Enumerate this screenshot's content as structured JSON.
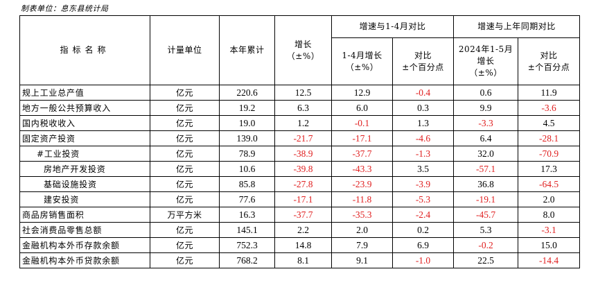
{
  "source": "制表单位：息东县统计局",
  "header": {
    "indicator": "指标名称",
    "unit": "计量单位",
    "ytd": "本年累计",
    "growth_l1": "增长",
    "growth_l2": "（±%）",
    "group1": "增速与1-4月对比",
    "group2": "增速与上年同期对比",
    "g1_growth_l1": "1-4月增长",
    "g1_growth_l2": "（±%）",
    "g1_compare_l1": "对比",
    "g1_compare_l2": "±个百分点",
    "g2_growth_l1": "2024年1-5月",
    "g2_growth_l2": "增长",
    "g2_growth_l3": "（±%）",
    "g2_compare_l1": "对比",
    "g2_compare_l2": "±个百分点"
  },
  "rows": [
    {
      "name": "规上工业总产值",
      "indent": 0,
      "unit": "亿元",
      "ytd": "220.6",
      "growth": "12.5",
      "g1_growth": "12.9",
      "g1_compare": "-0.4",
      "g2_growth": "0.6",
      "g2_compare": "11.9"
    },
    {
      "name": "地方一般公共预算收入",
      "indent": 0,
      "unit": "亿元",
      "ytd": "19.2",
      "growth": "6.3",
      "g1_growth": "6.0",
      "g1_compare": "0.3",
      "g2_growth": "9.9",
      "g2_compare": "-3.6"
    },
    {
      "name": "国内税收收入",
      "indent": 0,
      "unit": "亿元",
      "ytd": "19.0",
      "growth": "1.2",
      "g1_growth": "-0.1",
      "g1_compare": "1.3",
      "g2_growth": "-3.3",
      "g2_compare": "4.5"
    },
    {
      "name": "固定资产投资",
      "indent": 0,
      "unit": "亿元",
      "ytd": "139.0",
      "growth": "-21.7",
      "g1_growth": "-17.1",
      "g1_compare": "-4.6",
      "g2_growth": "6.4",
      "g2_compare": "-28.1"
    },
    {
      "name": "#工业投资",
      "indent": 1,
      "unit": "亿元",
      "ytd": "78.9",
      "growth": "-38.9",
      "g1_growth": "-37.7",
      "g1_compare": "-1.3",
      "g2_growth": "32.0",
      "g2_compare": "-70.9"
    },
    {
      "name": "房地产开发投资",
      "indent": 2,
      "unit": "亿元",
      "ytd": "10.6",
      "growth": "-39.8",
      "g1_growth": "-43.3",
      "g1_compare": "3.5",
      "g2_growth": "-57.1",
      "g2_compare": "17.3"
    },
    {
      "name": "基础设施投资",
      "indent": 2,
      "unit": "亿元",
      "ytd": "85.8",
      "growth": "-27.8",
      "g1_growth": "-23.9",
      "g1_compare": "-3.9",
      "g2_growth": "36.8",
      "g2_compare": "-64.5"
    },
    {
      "name": "建安投资",
      "indent": 2,
      "unit": "亿元",
      "ytd": "77.6",
      "growth": "-17.1",
      "g1_growth": "-11.8",
      "g1_compare": "-5.3",
      "g2_growth": "-19.1",
      "g2_compare": "2.0"
    },
    {
      "name": "商品房销售面积",
      "indent": 0,
      "unit": "万平方米",
      "ytd": "16.3",
      "growth": "-37.7",
      "g1_growth": "-35.3",
      "g1_compare": "-2.4",
      "g2_growth": "-45.7",
      "g2_compare": "8.0"
    },
    {
      "name": "社会消费品零售总额",
      "indent": 0,
      "unit": "亿元",
      "ytd": "145.1",
      "growth": "2.2",
      "g1_growth": "2.0",
      "g1_compare": "0.2",
      "g2_growth": "5.3",
      "g2_compare": "-3.1"
    },
    {
      "name": "金融机构本外币存款余额",
      "indent": 0,
      "unit": "亿元",
      "ytd": "752.3",
      "growth": "14.8",
      "g1_growth": "7.9",
      "g1_compare": "6.9",
      "g2_growth": "-0.2",
      "g2_compare": "15.0"
    },
    {
      "name": "金融机构本外币贷款余额",
      "indent": 0,
      "unit": "亿元",
      "ytd": "768.2",
      "growth": "8.1",
      "g1_growth": "9.1",
      "g1_compare": "-1.0",
      "g2_growth": "22.5",
      "g2_compare": "-14.4"
    }
  ],
  "colors": {
    "negative": "#e02020",
    "text": "#000000"
  }
}
